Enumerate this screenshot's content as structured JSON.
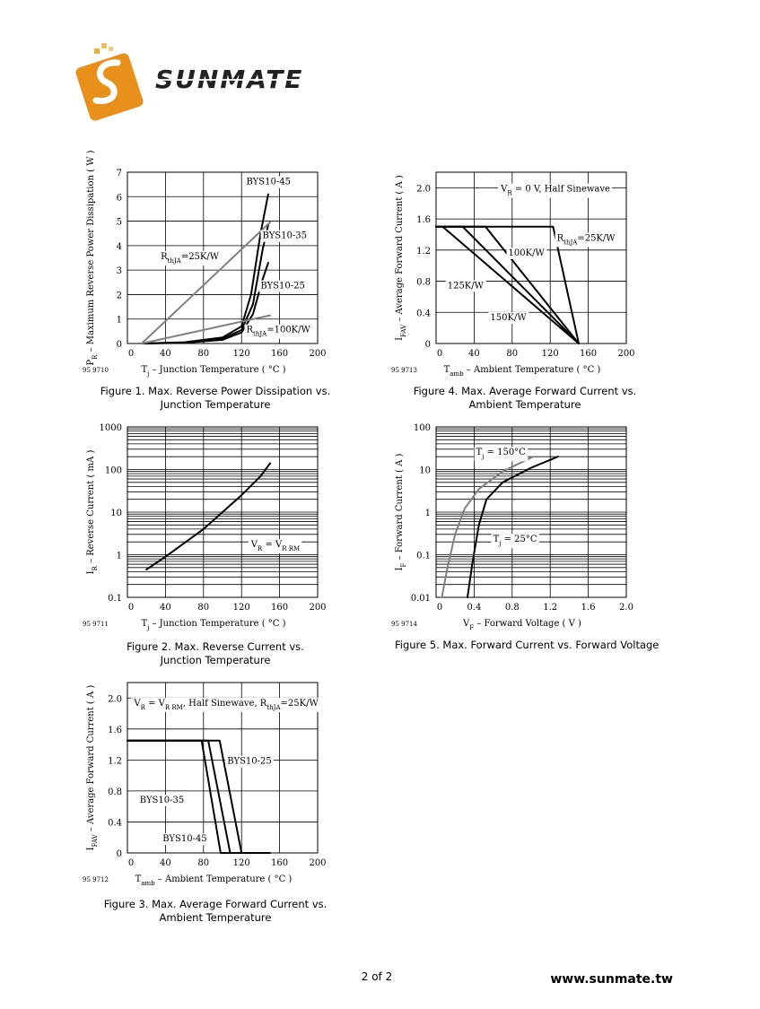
{
  "header": {
    "logo_text": "SUNMATE",
    "brand_orange": "#E8901A"
  },
  "footer": {
    "page": "2 of 2",
    "website": "www.sunmate.tw"
  },
  "chart_data": [
    {
      "id": "fig1",
      "type": "line",
      "figure_no": "95 9710",
      "caption": [
        "Figure 1.  Max. Reverse Power Dissipation vs.",
        "Junction Temperature"
      ],
      "ylabel": [
        "P",
        "R",
        " – Maximum Reverse Power Dissipation ( W )"
      ],
      "xlabel": [
        "T",
        "j",
        " – Junction Temperature ( °C )"
      ],
      "x_ticks": [
        "0",
        "40",
        "80",
        "120",
        "160",
        "200"
      ],
      "y_ticks": [
        "0",
        "1",
        "2",
        "3",
        "4",
        "5",
        "6",
        "7"
      ],
      "xlim": [
        0,
        200
      ],
      "ylim": [
        0,
        7
      ],
      "grid": true,
      "series": [
        {
          "name": "BYS10-45",
          "color": "#000000",
          "points": [
            [
              15,
              0
            ],
            [
              60,
              0.05
            ],
            [
              100,
              0.25
            ],
            [
              120,
              0.7
            ],
            [
              130,
              2.0
            ],
            [
              140,
              4.5
            ],
            [
              148,
              6.1
            ]
          ]
        },
        {
          "name": "BYS10-35",
          "color": "#000000",
          "points": [
            [
              15,
              0
            ],
            [
              60,
              0.04
            ],
            [
              100,
              0.2
            ],
            [
              120,
              0.55
            ],
            [
              132,
              1.6
            ],
            [
              142,
              3.8
            ],
            [
              148,
              4.85
            ]
          ]
        },
        {
          "name": "BYS10-25",
          "color": "#000000",
          "points": [
            [
              15,
              0
            ],
            [
              60,
              0.03
            ],
            [
              100,
              0.15
            ],
            [
              120,
              0.45
            ],
            [
              132,
              1.2
            ],
            [
              142,
              2.6
            ],
            [
              148,
              3.3
            ]
          ]
        },
        {
          "name": "RthJA=25K/W",
          "color": "#808080",
          "points": [
            [
              15,
              0
            ],
            [
              150,
              4.95
            ]
          ]
        },
        {
          "name": "RthJA=100K/W",
          "color": "#808080",
          "points": [
            [
              15,
              0
            ],
            [
              150,
              1.15
            ]
          ]
        }
      ],
      "labels": [
        {
          "text": "BYS10-45",
          "x": 125,
          "y": 6.5
        },
        {
          "text": "BYS10-35",
          "x": 142,
          "y": 4.3
        },
        {
          "text": "BYS10-25",
          "x": 140,
          "y": 2.25
        },
        {
          "sub_html": [
            "R",
            "thJA",
            "=25K/W"
          ],
          "x": 35,
          "y": 3.45
        },
        {
          "sub_html": [
            "R",
            "thJA",
            "=100K/W"
          ],
          "x": 125,
          "y": 0.45
        }
      ]
    },
    {
      "id": "fig2",
      "type": "line",
      "figure_no": "95 9711",
      "caption": [
        "Figure 2.  Max. Reverse Current vs.",
        "Junction Temperature"
      ],
      "ylabel": [
        "I",
        "R",
        " – Reverse Current ( mA )"
      ],
      "xlabel": [
        "T",
        "j",
        " – Junction Temperature ( °C )"
      ],
      "x_ticks": [
        "0",
        "40",
        "80",
        "120",
        "160",
        "200"
      ],
      "y_ticks": [
        "0.1",
        "1",
        "10",
        "100",
        "1000"
      ],
      "xlim": [
        0,
        200
      ],
      "ylim_log": [
        0.1,
        1000
      ],
      "grid": true,
      "series": [
        {
          "name": "",
          "color": "#000000",
          "points": [
            [
              20,
              0.45
            ],
            [
              40,
              0.9
            ],
            [
              60,
              1.9
            ],
            [
              80,
              4.0
            ],
            [
              100,
              10
            ],
            [
              120,
              25
            ],
            [
              140,
              70
            ],
            [
              150,
              140
            ]
          ]
        }
      ],
      "labels": [
        {
          "sub_html": [
            "V",
            "R",
            " = V",
            "R RM",
            ""
          ],
          "x": 130,
          "y": 1.5
        }
      ]
    },
    {
      "id": "fig3",
      "type": "line",
      "figure_no": "95 9712",
      "caption": [
        "Figure 3.  Max. Average Forward Current vs.",
        "Ambient Temperature"
      ],
      "ylabel": [
        "I",
        "FAV",
        " – Average Forward Current ( A )"
      ],
      "xlabel": [
        "T",
        "amb",
        " – Ambient Temperature ( °C )"
      ],
      "x_ticks": [
        "0",
        "40",
        "80",
        "120",
        "160",
        "200"
      ],
      "y_ticks": [
        "0",
        "0.4",
        "0.8",
        "1.2",
        "1.6",
        "2.0"
      ],
      "xlim": [
        0,
        200
      ],
      "ylim": [
        0,
        2.2
      ],
      "grid": true,
      "series": [
        {
          "name": "BYS10-45",
          "color": "#000000",
          "points": [
            [
              0,
              1.45
            ],
            [
              78,
              1.45
            ],
            [
              98,
              0
            ],
            [
              150,
              0
            ]
          ]
        },
        {
          "name": "BYS10-35",
          "color": "#000000",
          "points": [
            [
              0,
              1.45
            ],
            [
              85,
              1.45
            ],
            [
              108,
              0
            ]
          ]
        },
        {
          "name": "BYS10-25",
          "color": "#000000",
          "points": [
            [
              0,
              1.45
            ],
            [
              97,
              1.45
            ],
            [
              120,
              0
            ]
          ]
        }
      ],
      "labels": [
        {
          "sub_html": [
            "V",
            "R",
            " = V",
            "R RM",
            ", Half Sinewave, R",
            "thJA",
            "=25K/W"
          ],
          "x": 7,
          "y": 1.9
        },
        {
          "text": "BYS10-25",
          "x": 105,
          "y": 1.15
        },
        {
          "text": "BYS10-35",
          "x": 13,
          "y": 0.65
        },
        {
          "text": "BYS10-45",
          "x": 37,
          "y": 0.15
        }
      ]
    },
    {
      "id": "fig4",
      "type": "line",
      "figure_no": "95 9713",
      "caption": [
        "Figure 4.  Max. Average Forward Current vs.",
        "Ambient Temperature"
      ],
      "ylabel": [
        "I",
        "FAV",
        " – Average Forward Current ( A )"
      ],
      "xlabel": [
        "T",
        "amb",
        " – Ambient Temperature ( °C )"
      ],
      "x_ticks": [
        "0",
        "40",
        "80",
        "120",
        "160",
        "200"
      ],
      "y_ticks": [
        "0",
        "0.4",
        "0.8",
        "1.2",
        "1.6",
        "2.0"
      ],
      "xlim": [
        0,
        200
      ],
      "ylim": [
        0,
        2.2
      ],
      "grid": true,
      "series": [
        {
          "name": "RthJA=25K/W",
          "color": "#000000",
          "points": [
            [
              0,
              1.5
            ],
            [
              123,
              1.5
            ],
            [
              150,
              0
            ]
          ]
        },
        {
          "name": "100K/W",
          "color": "#000000",
          "points": [
            [
              0,
              1.5
            ],
            [
              52,
              1.5
            ],
            [
              150,
              0
            ]
          ]
        },
        {
          "name": "125K/W",
          "color": "#000000",
          "points": [
            [
              0,
              1.5
            ],
            [
              28,
              1.5
            ],
            [
              150,
              0
            ]
          ]
        },
        {
          "name": "150K/W",
          "color": "#000000",
          "points": [
            [
              7,
              1.5
            ],
            [
              150,
              0
            ]
          ]
        }
      ],
      "labels": [
        {
          "sub_html": [
            "V",
            "R",
            " = 0 V, Half Sinewave",
            "",
            ""
          ],
          "x": 68,
          "y": 1.95
        },
        {
          "sub_html": [
            "R",
            "thJA",
            "=25K/W"
          ],
          "x": 127,
          "y": 1.32
        },
        {
          "text": "100K/W",
          "x": 76,
          "y": 1.13
        },
        {
          "text": "125K/W",
          "x": 12,
          "y": 0.71
        },
        {
          "text": "150K/W",
          "x": 57,
          "y": 0.3
        }
      ]
    },
    {
      "id": "fig5",
      "type": "line",
      "figure_no": "95 9714",
      "caption": [
        "Figure 5.  Max. Forward Current vs. Forward Voltage"
      ],
      "ylabel": [
        "I",
        "F",
        " – Forward Current ( A )"
      ],
      "xlabel": [
        "V",
        "F",
        " – Forward Voltage ( V )"
      ],
      "x_ticks": [
        "0",
        "0.4",
        "0.8",
        "1.2",
        "1.6",
        "2.0"
      ],
      "y_ticks": [
        "0.01",
        "0.1",
        "1",
        "10",
        "100"
      ],
      "xlim": [
        0,
        2.0
      ],
      "ylim_log": [
        0.01,
        100
      ],
      "grid": true,
      "series": [
        {
          "name": "Tj=150°C",
          "color": "#808080",
          "points": [
            [
              0.06,
              0.01
            ],
            [
              0.12,
              0.05
            ],
            [
              0.2,
              0.3
            ],
            [
              0.3,
              1.2
            ],
            [
              0.45,
              3.5
            ],
            [
              0.7,
              9
            ],
            [
              1.02,
              20
            ]
          ]
        },
        {
          "name": "Tj=25°C",
          "color": "#000000",
          "points": [
            [
              0.33,
              0.01
            ],
            [
              0.38,
              0.06
            ],
            [
              0.45,
              0.5
            ],
            [
              0.53,
              2
            ],
            [
              0.7,
              5
            ],
            [
              1.0,
              11
            ],
            [
              1.28,
              20
            ]
          ]
        }
      ],
      "labels": [
        {
          "sub_html": [
            "T",
            "j",
            " = 150°C"
          ],
          "x": 0.42,
          "y": 22
        },
        {
          "sub_html": [
            "T",
            "j",
            " = 25°C"
          ],
          "x": 0.6,
          "y": 0.2
        }
      ]
    }
  ]
}
